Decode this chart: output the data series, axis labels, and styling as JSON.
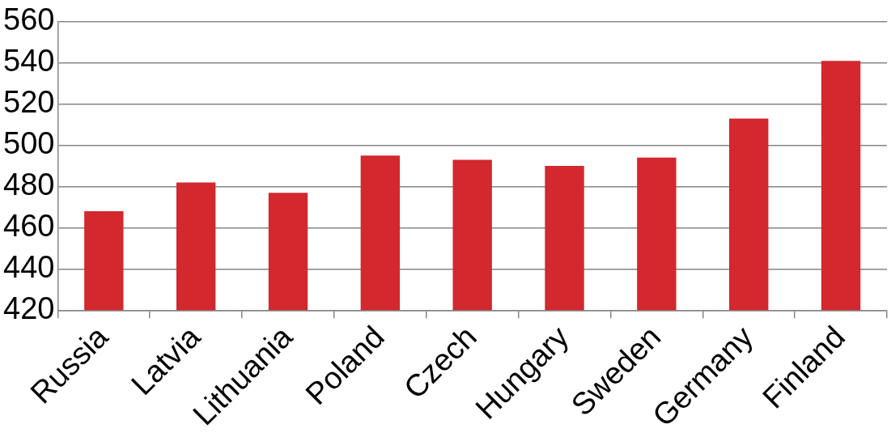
{
  "chart_data": {
    "type": "bar",
    "categories": [
      "Russia",
      "Latvia",
      "Lithuania",
      "Poland",
      "Czech",
      "Hungary",
      "Sweden",
      "Germany",
      "Finland"
    ],
    "values": [
      468,
      482,
      477,
      495,
      493,
      490,
      494,
      513,
      541
    ],
    "color": "#d2282e",
    "ylim": [
      420,
      560
    ],
    "yticks": [
      420,
      440,
      460,
      480,
      500,
      520,
      540,
      560
    ],
    "grid": "y",
    "legend": false
  }
}
